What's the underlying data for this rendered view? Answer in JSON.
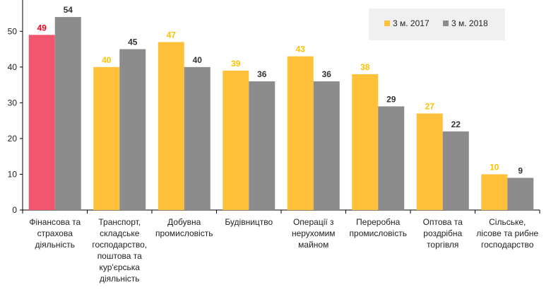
{
  "chart_data": {
    "type": "bar",
    "categories": [
      [
        "Фінансова та",
        "страхова",
        "діяльність"
      ],
      [
        "Транспорт,",
        "складське",
        "господарство,",
        "поштова та",
        "кур'єрська",
        "діяльність"
      ],
      [
        "Добувна",
        "промисловість"
      ],
      [
        "Будівництво"
      ],
      [
        "Операції з",
        "нерухомим",
        "майном"
      ],
      [
        "Переробна",
        "промисловість"
      ],
      [
        "Оптова та",
        "роздрібна",
        "торгівля"
      ],
      [
        "Сільське,",
        "лісове та рибне",
        "господарство"
      ]
    ],
    "series": [
      {
        "name": "3 м. 2017",
        "values": [
          49,
          40,
          47,
          39,
          43,
          38,
          27,
          10
        ]
      },
      {
        "name": "3 м. 2018",
        "values": [
          54,
          45,
          40,
          36,
          36,
          29,
          22,
          9
        ]
      }
    ],
    "ylim": [
      0,
      55
    ],
    "yticks": [
      0,
      10,
      20,
      30,
      40,
      50
    ],
    "legend_position": "top-right",
    "grid": false
  },
  "colors": {
    "series_2017": "#FFC03A",
    "series_2018": "#8C8C8C",
    "highlight_bar": "#F2566E",
    "highlight_label": "#E8001C",
    "label_2017": "#FFC000",
    "label_2018": "#333333",
    "axis": "#000000",
    "legend_bg": "#F0F0F0"
  }
}
